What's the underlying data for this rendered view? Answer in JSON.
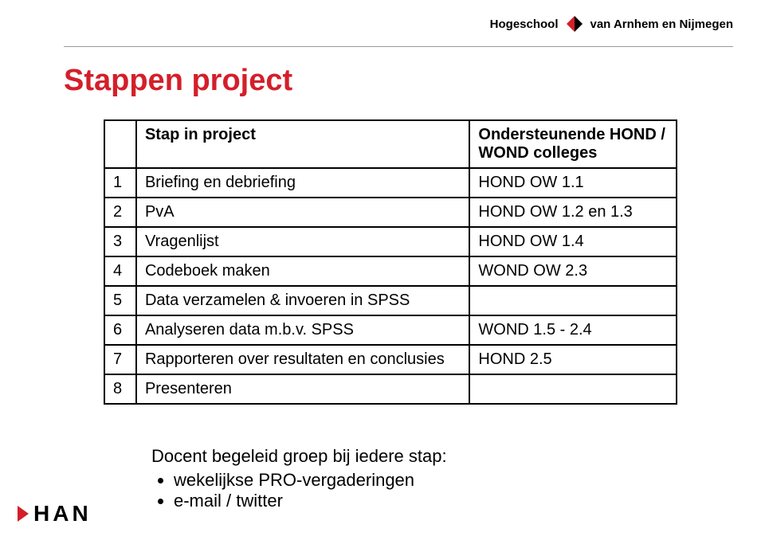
{
  "brand": {
    "left": "Hogeschool",
    "right": "van Arnhem en Nijmegen",
    "diamond_colors": {
      "left": "#d41f2a",
      "right": "#000000"
    }
  },
  "title": {
    "text": "Stappen project",
    "color": "#d41f2a"
  },
  "table": {
    "header": {
      "num": "",
      "step": "Stap in project",
      "support": "Ondersteunende HOND / WOND colleges"
    },
    "rows": [
      {
        "num": "1",
        "step": "Briefing en debriefing",
        "support": "HOND OW 1.1"
      },
      {
        "num": "2",
        "step": "PvA",
        "support": "HOND OW 1.2 en 1.3"
      },
      {
        "num": "3",
        "step": "Vragenlijst",
        "support": "HOND OW 1.4"
      },
      {
        "num": "4",
        "step": "Codeboek maken",
        "support": "WOND OW 2.3"
      },
      {
        "num": "5",
        "step": "Data verzamelen & invoeren in SPSS",
        "support": ""
      },
      {
        "num": "6",
        "step": "Analyseren data m.b.v. SPSS",
        "support": "WOND 1.5 - 2.4"
      },
      {
        "num": "7",
        "step": "Rapporteren over resultaten en conclusies",
        "support": "HOND 2.5"
      },
      {
        "num": "8",
        "step": "Presenteren",
        "support": ""
      }
    ]
  },
  "bottom": {
    "intro": "Docent begeleid groep bij iedere stap:",
    "items": [
      "wekelijkse PRO-vergaderingen",
      "e-mail / twitter"
    ]
  },
  "footer": {
    "han": "HAN",
    "tri_color": "#d41f2a"
  }
}
